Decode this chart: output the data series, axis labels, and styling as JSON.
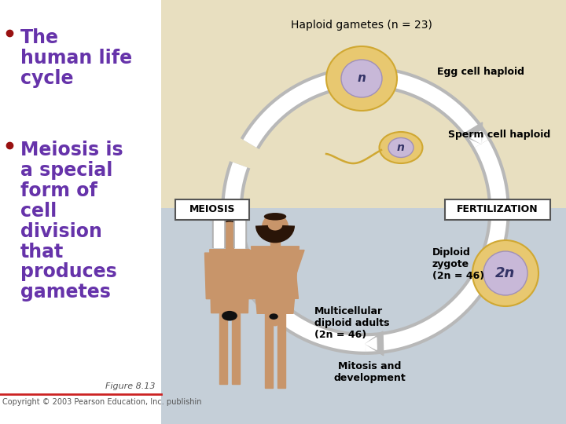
{
  "bg_color": "#ffffff",
  "left_panel_color": "#ffffff",
  "right_top_color": "#e8dfc0",
  "right_bottom_color": "#c5cfd8",
  "bullet_color": "#991111",
  "title_color": "#6633aa",
  "bullet_texts": [
    "The\nhuman life\ncycle",
    "Meiosis is\na special\nform of\ncell\ndivision\nthat\nproduces\ngametes"
  ],
  "figure_caption": "Figure 8.13",
  "copyright": "Copyright © 2003 Pearson Education, Inc. publishin",
  "labels": {
    "haploid_gametes": "Haploid gametes (n = 23)",
    "egg_cell": "Egg cell haploid",
    "sperm_cell": "Sperm cell haploid",
    "meiosis": "MEIOSIS",
    "fertilization": "FERTILIZATION",
    "diploid_zygote": "Diploid\nzygote\n(2n = 46)",
    "multicellular": "Multicellular\ndiploid adults\n(2n = 46)",
    "mitosis": "Mitosis and\ndevelopment",
    "n_label": "n",
    "twon_label": "2n"
  },
  "cell_outer_color": "#e8c870",
  "cell_inner_color": "#c8b8d8",
  "arrow_color": "#ffffff",
  "arrow_edge_color": "#b0b0b0",
  "box_color": "#ffffff",
  "box_edge": "#555555",
  "skin_color": "#c8956a",
  "hair_color": "#2a1508"
}
